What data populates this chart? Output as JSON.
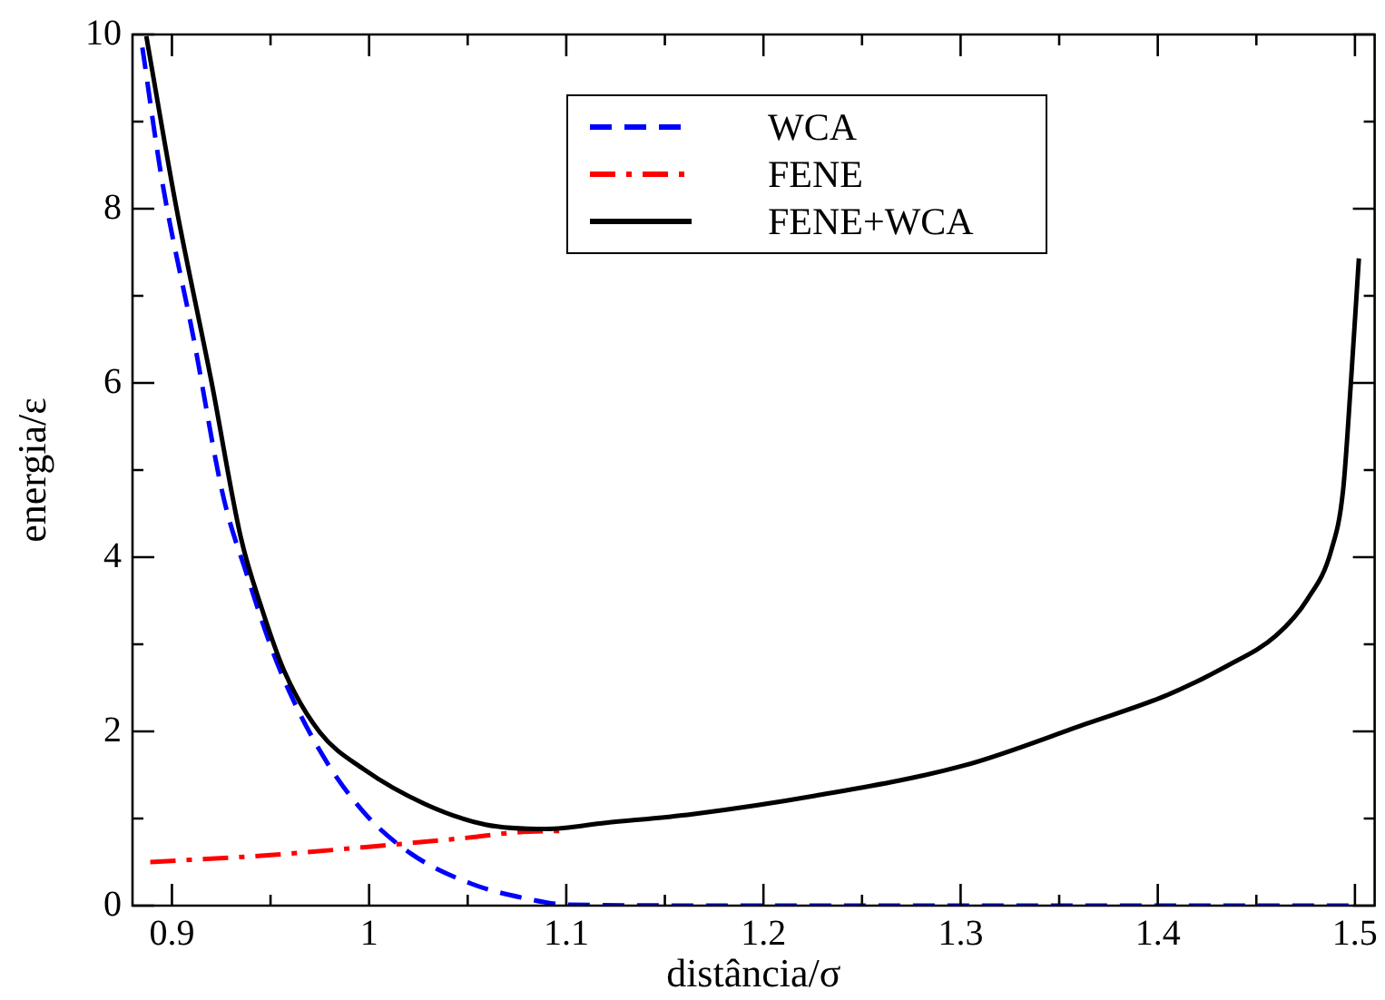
{
  "chart_data": {
    "type": "line",
    "xlabel": "distância/σ",
    "ylabel": "energia/ε",
    "xlim": [
      0.88,
      1.51
    ],
    "ylim": [
      0,
      10
    ],
    "xticks": [
      0.9,
      {
        "value": 0.95,
        "label": null
      },
      1,
      {
        "value": 1.05,
        "label": null
      },
      1.1,
      {
        "value": 1.15,
        "label": null
      },
      1.2,
      {
        "value": 1.25,
        "label": null
      },
      1.3,
      {
        "value": 1.35,
        "label": null
      },
      1.4,
      {
        "value": 1.45,
        "label": null
      },
      1.5
    ],
    "yticks": [
      0,
      {
        "value": 1,
        "label": null
      },
      2,
      {
        "value": 3,
        "label": null
      },
      4,
      {
        "value": 5,
        "label": null
      },
      6,
      {
        "value": 7,
        "label": null
      },
      8,
      {
        "value": 9,
        "label": null
      },
      10
    ],
    "grid": false,
    "legend": "top",
    "marker": "none",
    "series": [
      {
        "name": "WCA",
        "color": "#0000ff",
        "line_style": "dashed",
        "x": [
          0.885,
          0.895,
          0.911,
          0.926,
          0.938,
          0.954,
          0.975,
          0.997,
          1.021,
          1.052,
          1.08,
          1.101,
          1.2,
          1.3,
          1.4,
          1.5
        ],
        "values": [
          9.85,
          8.32,
          6.51,
          4.7,
          3.8,
          2.75,
          1.78,
          1.08,
          0.6,
          0.25,
          0.08,
          0.01,
          0,
          0,
          0,
          0
        ]
      },
      {
        "name": "FENE",
        "color": "#ff0000",
        "line_style": "dashdot",
        "x": [
          0.889,
          0.95,
          0.997,
          1.05,
          1.074,
          1.1
        ],
        "values": [
          0.5,
          0.58,
          0.67,
          0.78,
          0.84,
          0.86
        ]
      },
      {
        "name": "FENE+WCA",
        "color": "#000000",
        "line_style": "solid",
        "x": [
          0.887,
          0.902,
          0.92,
          0.935,
          0.945,
          0.957,
          0.975,
          0.997,
          1.028,
          1.059,
          1.09,
          1.12,
          1.164,
          1.226,
          1.302,
          1.364,
          1.404,
          1.435,
          1.46,
          1.476,
          1.488,
          1.494,
          1.498,
          1.502
        ],
        "values": [
          9.98,
          8.04,
          6.02,
          4.22,
          3.45,
          2.69,
          1.99,
          1.57,
          1.17,
          0.93,
          0.88,
          0.95,
          1.05,
          1.26,
          1.61,
          2.09,
          2.41,
          2.75,
          3.1,
          3.52,
          4.08,
          4.77,
          6.02,
          7.43
        ]
      }
    ]
  }
}
